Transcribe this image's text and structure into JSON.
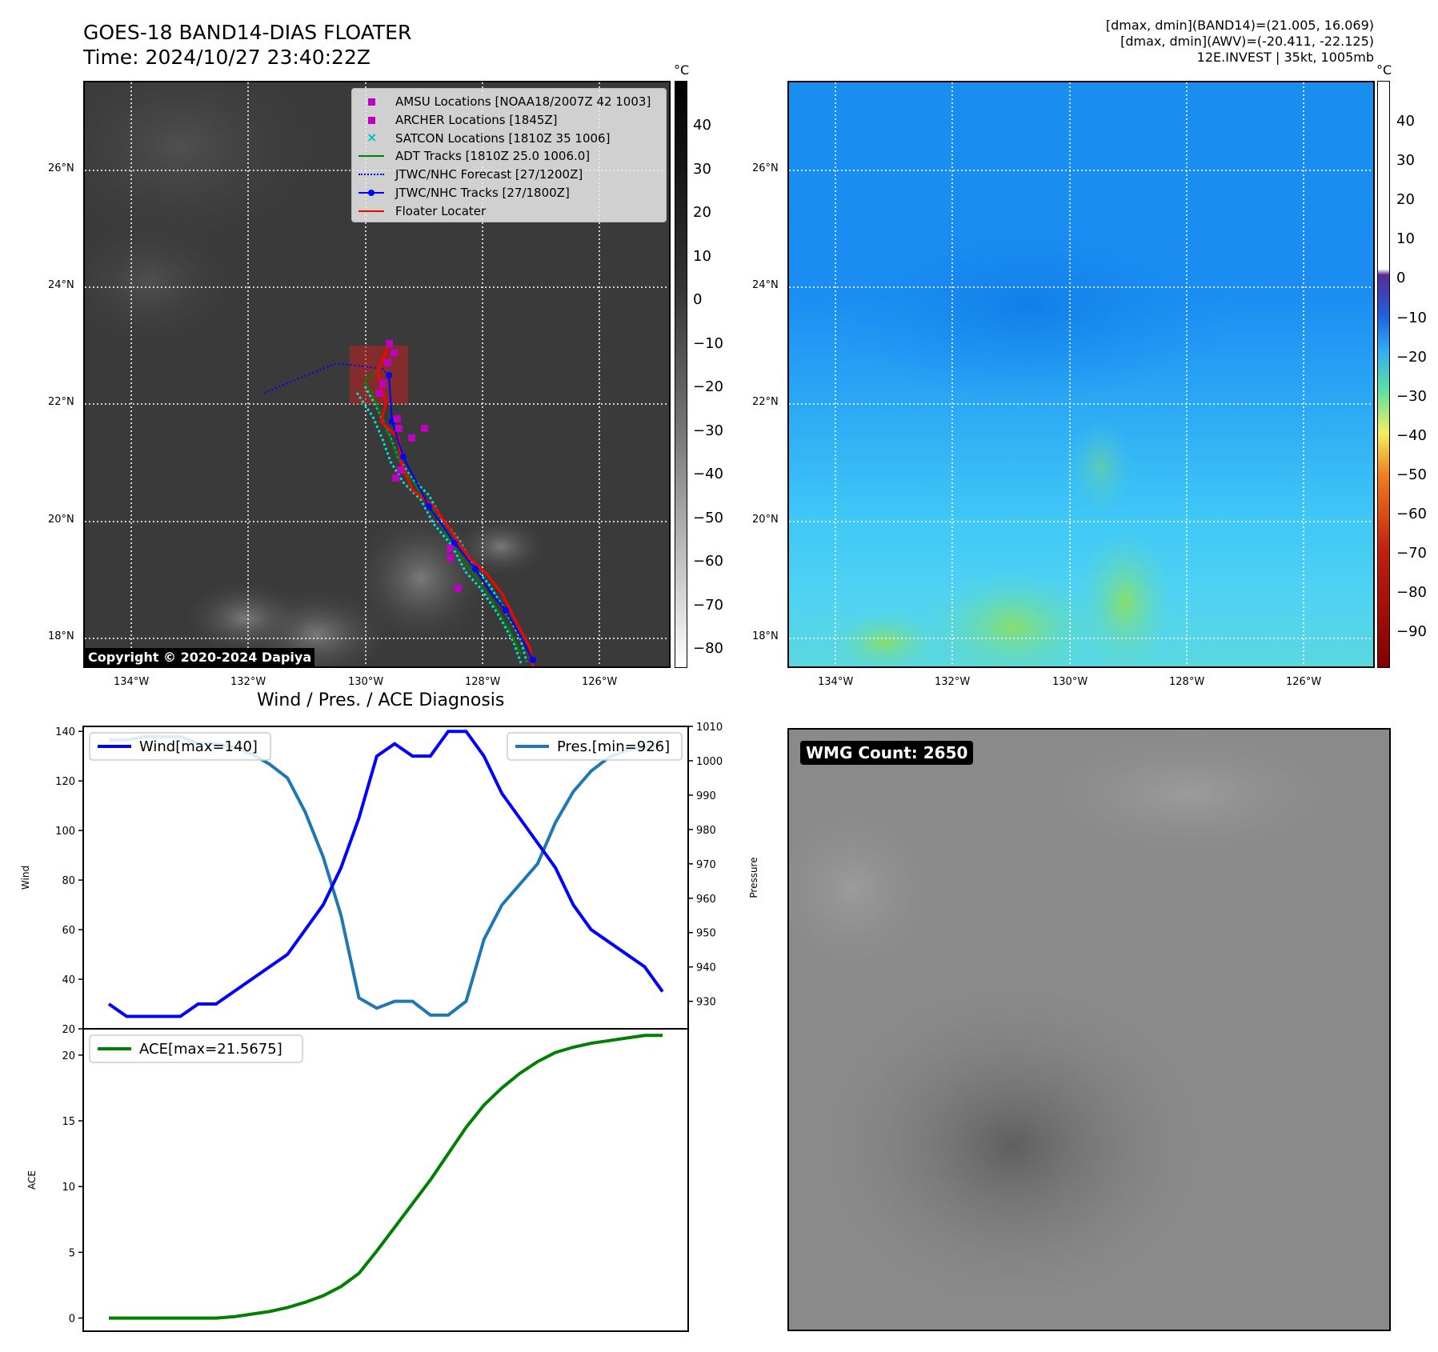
{
  "header": {
    "title_line1": "GOES-18 BAND14-DIAS FLOATER",
    "title_line2": "Time: 2024/10/27 23:40:22Z",
    "info_line1": "[dmax, dmin](BAND14)=(21.005, 16.069)",
    "info_line2": "[dmax, dmin](AWV)=(-20.411, -22.125)",
    "info_line3": "12E.INVEST | 35kt, 1005mb"
  },
  "map": {
    "lat_labels": [
      "26°N",
      "24°N",
      "22°N",
      "20°N",
      "18°N"
    ],
    "lon_labels": [
      "134°W",
      "132°W",
      "130°W",
      "128°W",
      "126°W"
    ],
    "copyright": "Copyright © 2020-2024 Dapiya",
    "legend": [
      {
        "label": "AMSU Locations [NOAA18/2007Z 42 1003]",
        "color": "#c000c0",
        "marker": "square"
      },
      {
        "label": "ARCHER Locations [1845Z]",
        "color": "#c000c0",
        "marker": "square"
      },
      {
        "label": "SATCON Locations [1810Z 35 1006]",
        "color": "#00c0c0",
        "marker": "x"
      },
      {
        "label": "ADT Tracks [1810Z 25.0 1006.0]",
        "color": "#008000",
        "marker": "line"
      },
      {
        "label": "JTWC/NHC Forecast [27/1200Z]",
        "color": "#0000ff",
        "marker": "dotted"
      },
      {
        "label": "JTWC/NHC Tracks [27/1800Z]",
        "color": "#0000ff",
        "marker": "dotline"
      },
      {
        "label": "Floater Locater",
        "color": "#ff0000",
        "marker": "line"
      }
    ]
  },
  "colorbar_left": {
    "unit": "°C",
    "ticks": [
      "40",
      "30",
      "20",
      "10",
      "0",
      "−10",
      "−20",
      "−30",
      "−40",
      "−50",
      "−60",
      "−70",
      "−80"
    ]
  },
  "colorbar_right": {
    "unit": "°C",
    "ticks": [
      "40",
      "30",
      "20",
      "10",
      "0",
      "−10",
      "−20",
      "−30",
      "−40",
      "−50",
      "−60",
      "−70",
      "−80",
      "−90"
    ]
  },
  "wmg": {
    "label": "WMG Count: 2650"
  },
  "chart_data": [
    {
      "type": "line",
      "title": "Wind / Pres. / ACE Diagnosis",
      "ylabel": "Wind",
      "y2label": "Pressure",
      "ylim": [
        20,
        142
      ],
      "y2lim": [
        922,
        1010
      ],
      "yticks": [
        "140",
        "120",
        "100",
        "80",
        "60",
        "40",
        "20"
      ],
      "y2ticks": [
        "1010",
        "1000",
        "990",
        "980",
        "970",
        "960",
        "950",
        "940",
        "930"
      ],
      "legend_left": "Wind[max=140]",
      "legend_right": "Pres.[min=926]",
      "series": [
        {
          "name": "Wind[max=140]",
          "color": "#0000ff",
          "values": [
            30,
            25,
            25,
            25,
            25,
            30,
            30,
            35,
            40,
            45,
            50,
            60,
            70,
            85,
            105,
            130,
            135,
            130,
            130,
            140,
            140,
            130,
            115,
            105,
            95,
            85,
            70,
            60,
            55,
            50,
            45,
            35
          ]
        },
        {
          "name": "Pres.[min=926]",
          "color": "#1f77b4",
          "values": [
            1006,
            1006,
            1007,
            1007,
            1007,
            1005,
            1005,
            1004,
            1002,
            999,
            995,
            985,
            972,
            955,
            931,
            928,
            930,
            930,
            926,
            926,
            930,
            948,
            958,
            964,
            970,
            982,
            991,
            997,
            1001,
            1003,
            1004,
            1005
          ]
        }
      ]
    },
    {
      "type": "line",
      "ylabel": "ACE",
      "ylim": [
        -1,
        22
      ],
      "yticks": [
        "20",
        "15",
        "10",
        "5",
        "0"
      ],
      "legend": "ACE[max=21.5675]",
      "series": [
        {
          "name": "ACE[max=21.5675]",
          "color": "#008000",
          "values": [
            0,
            0,
            0,
            0,
            0,
            0,
            0,
            0.1,
            0.3,
            0.5,
            0.8,
            1.2,
            1.7,
            2.4,
            3.4,
            5.1,
            6.9,
            8.7,
            10.5,
            12.5,
            14.5,
            16.2,
            17.5,
            18.6,
            19.5,
            20.2,
            20.6,
            20.9,
            21.1,
            21.3,
            21.5,
            21.5
          ]
        }
      ]
    }
  ]
}
